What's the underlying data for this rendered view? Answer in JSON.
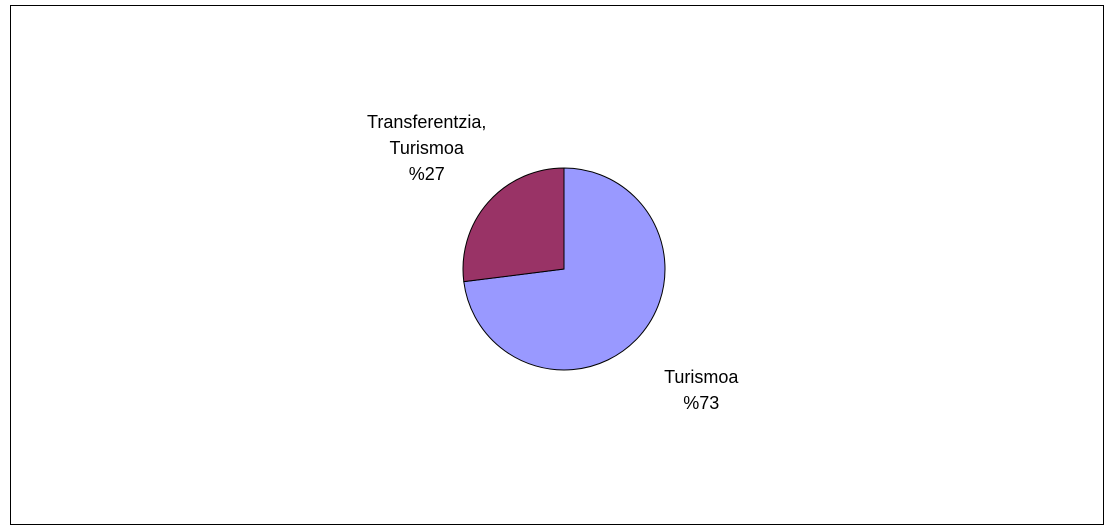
{
  "chart_data": {
    "type": "pie",
    "categories": [
      "Turismoa",
      "Transferentzia, Turismoa"
    ],
    "values": [
      73,
      27
    ],
    "value_labels": [
      "%73",
      "%27"
    ],
    "colors": [
      "#9999ff",
      "#993366"
    ]
  }
}
